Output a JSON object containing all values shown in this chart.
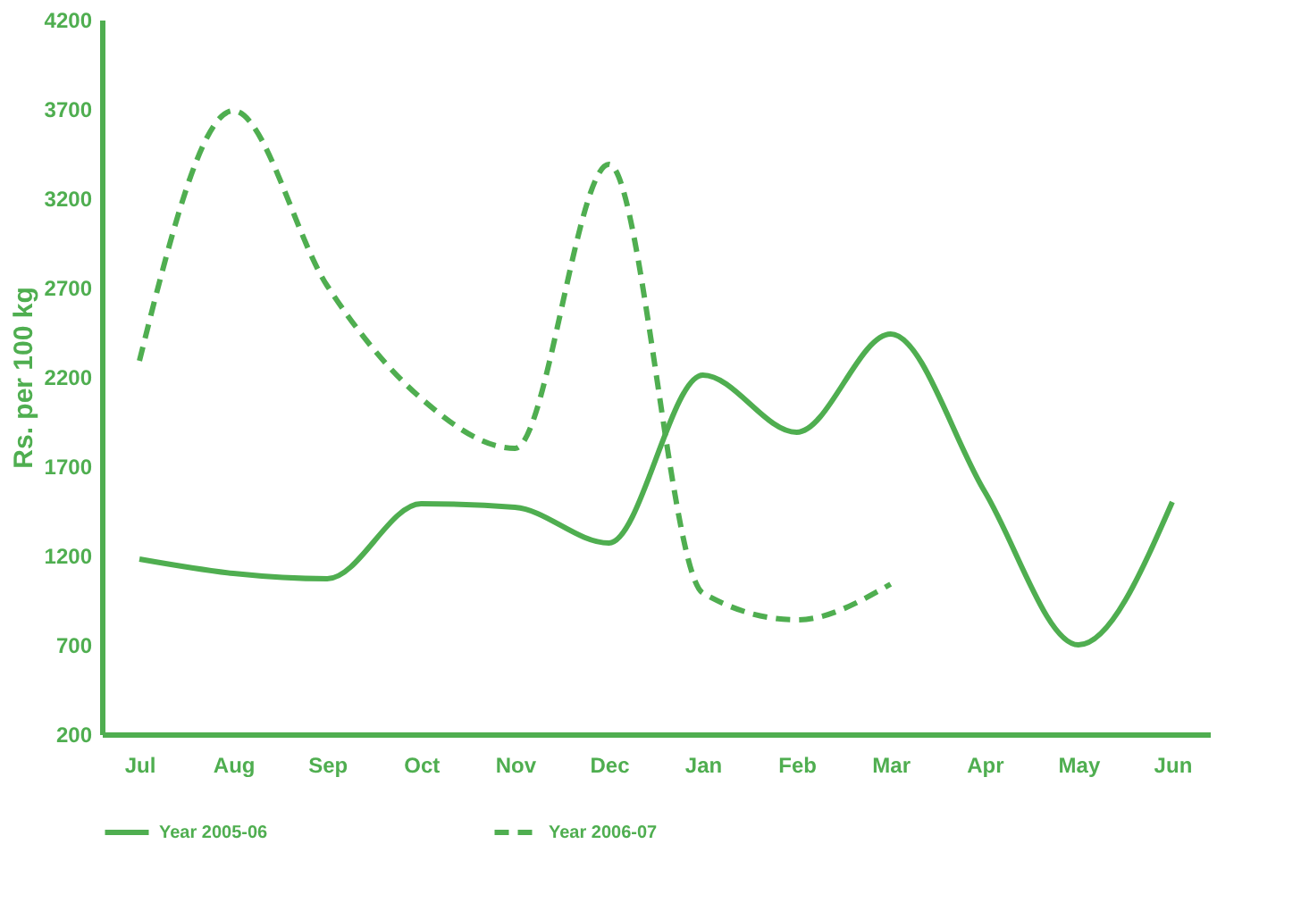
{
  "chart_data": {
    "type": "line",
    "ylabel": "Rs. per 100 kg",
    "categories": [
      "Jul",
      "Aug",
      "Sep",
      "Oct",
      "Nov",
      "Dec",
      "Jan",
      "Feb",
      "Mar",
      "Apr",
      "May",
      "Jun"
    ],
    "ylim": [
      200,
      4200
    ],
    "yticks": [
      200,
      700,
      1200,
      1700,
      2200,
      2700,
      3200,
      3700,
      4200
    ],
    "grid": false,
    "legend": "bottom",
    "marker": "none",
    "series": [
      {
        "name": "Year 2005-06",
        "color": "#4fae50",
        "line_style": "solid",
        "values": [
          1180,
          1100,
          1070,
          1490,
          1470,
          1270,
          2210,
          1890,
          2440,
          1560,
          700,
          1500
        ]
      },
      {
        "name": "Year 2006-07",
        "color": "#4fae50",
        "line_style": "dashed",
        "values": [
          2290,
          3690,
          2710,
          2080,
          1800,
          3390,
          990,
          840,
          1040,
          null,
          null,
          null
        ]
      }
    ]
  }
}
